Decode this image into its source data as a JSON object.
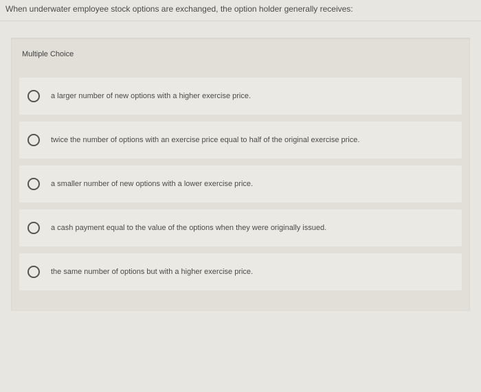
{
  "question": {
    "prompt": "When underwater employee stock options are exchanged, the option holder generally receives:"
  },
  "section_label": "Multiple Choice",
  "options": [
    {
      "text": "a larger number of new options with a higher exercise price."
    },
    {
      "text": "twice the number of options with an exercise price equal to half of the original exercise price."
    },
    {
      "text": "a smaller number of new options with a lower exercise price."
    },
    {
      "text": "a cash payment equal to the value of the options when they were originally issued."
    },
    {
      "text": "the same number of options but with a higher exercise price."
    }
  ],
  "colors": {
    "page_bg": "#e8e6e1",
    "panel_bg": "#e2dfd9",
    "option_bg": "#ebe9e3",
    "text": "#4a4a4a",
    "radio_border": "#555555"
  }
}
